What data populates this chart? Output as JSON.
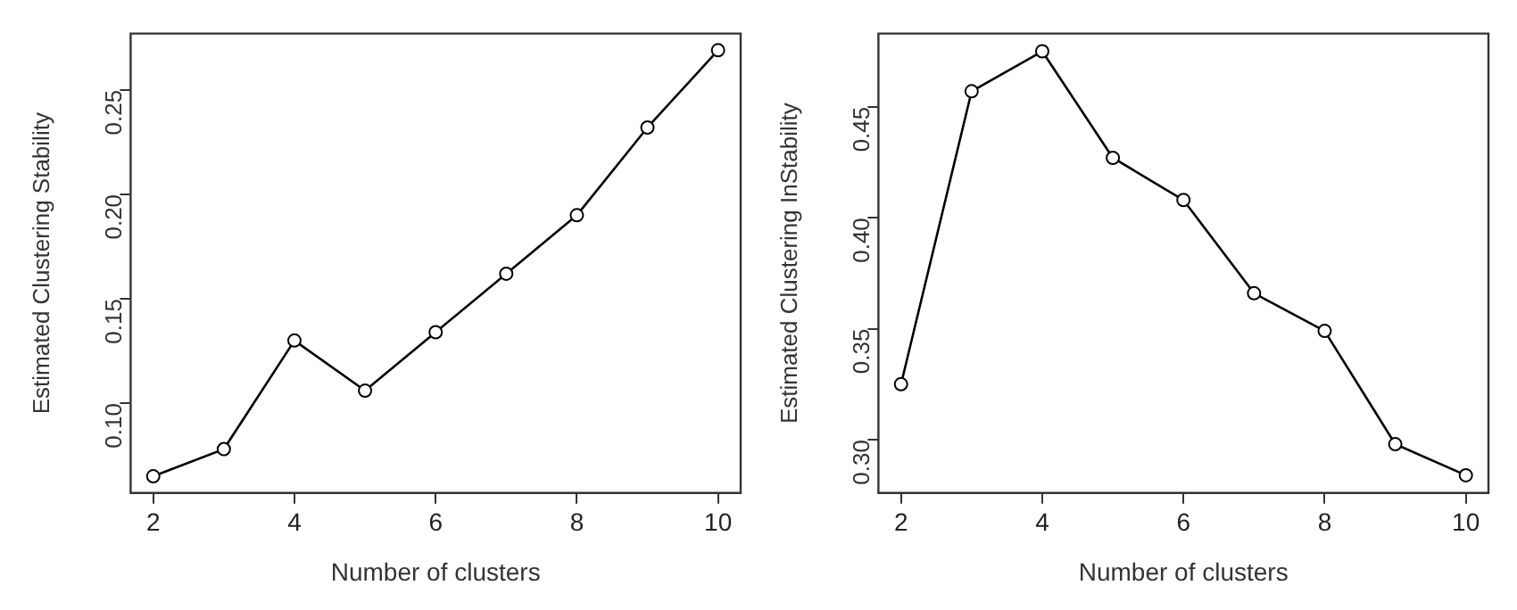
{
  "chart_data": [
    {
      "type": "line",
      "xlabel": "Number of clusters",
      "ylabel": "Estimated Clustering Stability",
      "x": [
        2,
        3,
        4,
        5,
        6,
        7,
        8,
        9,
        10
      ],
      "series": [
        {
          "color": "#000000",
          "values": [
            0.065,
            0.078,
            0.13,
            0.106,
            0.134,
            0.162,
            0.19,
            0.232,
            0.269
          ]
        }
      ],
      "xlim": [
        1.68,
        10.32
      ],
      "xticks": [
        2,
        4,
        6,
        8,
        10
      ],
      "ylim": [
        0.057,
        0.277
      ],
      "yticks": [
        {
          "value": 0.1,
          "label": "0.10"
        },
        0.15,
        {
          "value": 0.2,
          "label": "0.20"
        },
        0.25
      ],
      "marker": "circle",
      "line_style": "solid",
      "grid": false,
      "legend": false
    },
    {
      "type": "line",
      "xlabel": "Number of clusters",
      "ylabel": "Estimated Clustering InStability",
      "x": [
        2,
        3,
        4,
        5,
        6,
        7,
        8,
        9,
        10
      ],
      "series": [
        {
          "color": "#000000",
          "values": [
            0.325,
            0.457,
            0.475,
            0.427,
            0.408,
            0.366,
            0.349,
            0.298,
            0.284
          ]
        }
      ],
      "xlim": [
        1.68,
        10.32
      ],
      "xticks": [
        2,
        4,
        6,
        8,
        10
      ],
      "ylim": [
        0.276,
        0.483
      ],
      "yticks": [
        {
          "value": 0.3,
          "label": "0.30"
        },
        0.35,
        {
          "value": 0.4,
          "label": "0.40"
        },
        0.45
      ],
      "marker": "circle",
      "line_style": "solid",
      "grid": false,
      "legend": false
    }
  ]
}
